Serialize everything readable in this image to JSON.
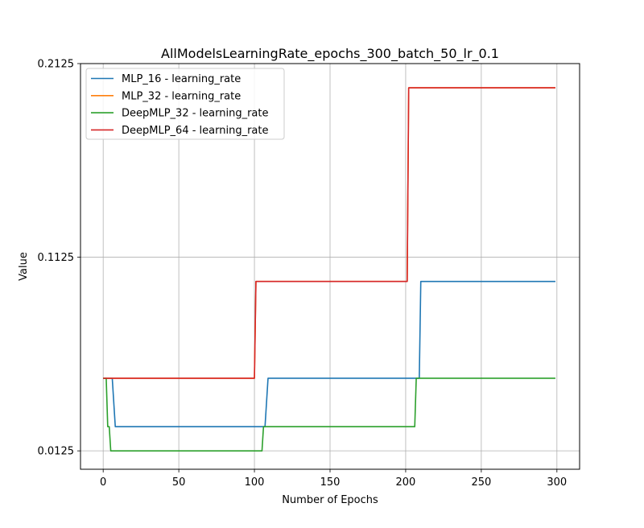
{
  "chart_data": {
    "type": "line",
    "title": "AllModelsLearningRate_epochs_300_batch_50_lr_0.1",
    "xlabel": "Number of Epochs",
    "ylabel": "Value",
    "xlim": [
      -15,
      315
    ],
    "ylim": [
      0.003,
      0.2125
    ],
    "xticks": [
      0,
      50,
      100,
      150,
      200,
      250,
      300
    ],
    "yticks": [
      0.0125,
      0.1125,
      0.2125
    ],
    "ytick_labels": [
      "0.0125",
      "0.1125",
      "0.2125"
    ],
    "grid": true,
    "legend_position": "top-left",
    "series": [
      {
        "name": "MLP_16 - learning_rate",
        "color": "#1f77b4",
        "points": [
          [
            0,
            0.05
          ],
          [
            6,
            0.05
          ],
          [
            8,
            0.025
          ],
          [
            107,
            0.025
          ],
          [
            109,
            0.05
          ],
          [
            209,
            0.05
          ],
          [
            210,
            0.1
          ],
          [
            299,
            0.1
          ]
        ]
      },
      {
        "name": "MLP_32 - learning_rate",
        "color": "#ff7f0e",
        "points": [
          [
            0,
            0.05
          ],
          [
            100,
            0.05
          ],
          [
            101,
            0.1
          ],
          [
            201,
            0.1
          ],
          [
            202,
            0.2
          ],
          [
            299,
            0.2
          ]
        ]
      },
      {
        "name": "DeepMLP_32 - learning_rate",
        "color": "#2ca02c",
        "points": [
          [
            0,
            0.05
          ],
          [
            2,
            0.05
          ],
          [
            3,
            0.025
          ],
          [
            4,
            0.025
          ],
          [
            5,
            0.0125
          ],
          [
            105,
            0.0125
          ],
          [
            106,
            0.025
          ],
          [
            206,
            0.025
          ],
          [
            207,
            0.05
          ],
          [
            299,
            0.05
          ]
        ]
      },
      {
        "name": "DeepMLP_64 - learning_rate",
        "color": "#d62728",
        "points": [
          [
            0,
            0.05
          ],
          [
            100,
            0.05
          ],
          [
            101,
            0.1
          ],
          [
            201,
            0.1
          ],
          [
            202,
            0.2
          ],
          [
            299,
            0.2
          ]
        ]
      }
    ]
  }
}
